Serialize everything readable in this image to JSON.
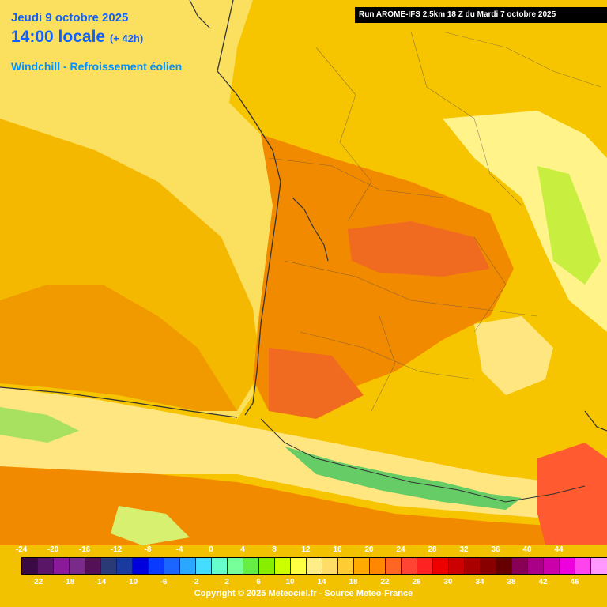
{
  "header": {
    "date": "Jeudi 9 octobre 2025",
    "time": "14:00 locale",
    "offset": "(+ 42h)",
    "variable": "Windchill - Refroissement éolien"
  },
  "run_info": "Run AROME-IFS 2.5km 18 Z du Mardi 7 octobre 2025",
  "legend": {
    "top_labels": [
      "-24",
      "-20",
      "-16",
      "-12",
      "-8",
      "-4",
      "0",
      "4",
      "8",
      "12",
      "16",
      "20",
      "24",
      "28",
      "32",
      "36",
      "40",
      "44"
    ],
    "bottom_labels": [
      "-22",
      "-18",
      "-14",
      "-10",
      "-6",
      "-2",
      "2",
      "6",
      "10",
      "14",
      "18",
      "22",
      "26",
      "30",
      "34",
      "38",
      "42",
      "46"
    ],
    "colors": [
      "#3a0a44",
      "#5a1666",
      "#8a1a99",
      "#7a2a88",
      "#551155",
      "#2a3a77",
      "#1a3aa0",
      "#0000dd",
      "#0a3aff",
      "#1a66ff",
      "#2aa8ff",
      "#44ddff",
      "#66ffcc",
      "#77ff99",
      "#66ee44",
      "#88ee00",
      "#ccff00",
      "#ffff44",
      "#ffee88",
      "#ffdd66",
      "#ffcc33",
      "#ffaa00",
      "#ff8800",
      "#ff6622",
      "#ff4433",
      "#ff2222",
      "#ee0000",
      "#cc0000",
      "#aa0000",
      "#880000",
      "#660000",
      "#880055",
      "#aa0088",
      "#cc00aa",
      "#ee00dd",
      "#ff44ee",
      "#ff99ff"
    ]
  },
  "copyright": "Copyright © 2025 Meteociel.fr - Source Meteo-France"
}
